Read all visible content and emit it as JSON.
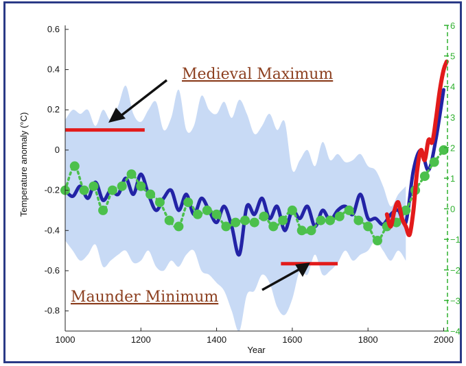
{
  "chart_data": {
    "type": "line",
    "xlabel": "Year",
    "ylabel": "Temperature anomaly (°C)",
    "xlim": [
      1000,
      2010
    ],
    "ylim": [
      -0.9,
      0.62
    ],
    "y2lim": [
      -4,
      6
    ],
    "x_ticks": [
      1000,
      1200,
      1400,
      1600,
      1800,
      2000
    ],
    "y_ticks": [
      -0.8,
      -0.6,
      -0.4,
      -0.2,
      0,
      0.2,
      0.4,
      0.6
    ],
    "y2_ticks": [
      -4,
      -3,
      -2,
      -1,
      0,
      1,
      2,
      3,
      4,
      5,
      6
    ],
    "grid": false,
    "colors": {
      "band": "#c8daf5",
      "reconstruction": "#2323a6",
      "instrumental": "#e21b1b",
      "dotted": "#4cc04c",
      "annotation_text": "#8c3f1f",
      "annotation_bar": "#e21b1b",
      "right_axis": "#2fb02f",
      "frame": "#2a3a86"
    },
    "band": {
      "x": [
        1000,
        1020,
        1040,
        1060,
        1080,
        1100,
        1120,
        1140,
        1160,
        1180,
        1200,
        1220,
        1240,
        1260,
        1280,
        1300,
        1320,
        1340,
        1360,
        1380,
        1400,
        1420,
        1440,
        1460,
        1480,
        1500,
        1520,
        1540,
        1560,
        1580,
        1600,
        1620,
        1640,
        1660,
        1680,
        1700,
        1720,
        1740,
        1760,
        1780,
        1800,
        1820,
        1840,
        1860,
        1880,
        1900
      ],
      "upper": [
        0.15,
        0.2,
        0.18,
        0.2,
        0.12,
        0.2,
        0.15,
        0.22,
        0.32,
        0.18,
        0.14,
        0.2,
        0.24,
        0.1,
        0.16,
        0.3,
        0.1,
        0.12,
        0.27,
        0.2,
        0.18,
        0.24,
        0.16,
        0.25,
        0.18,
        0.08,
        0.12,
        0.18,
        0.1,
        0.14,
        -0.1,
        -0.05,
        0.0,
        -0.08,
        0.04,
        -0.05,
        -0.02,
        -0.06,
        -0.05,
        -0.02,
        -0.08,
        -0.1,
        -0.18,
        -0.28,
        -0.22,
        -0.18
      ],
      "lower": [
        -0.45,
        -0.5,
        -0.55,
        -0.52,
        -0.47,
        -0.58,
        -0.55,
        -0.52,
        -0.5,
        -0.56,
        -0.55,
        -0.5,
        -0.58,
        -0.6,
        -0.55,
        -0.58,
        -0.52,
        -0.5,
        -0.6,
        -0.62,
        -0.66,
        -0.7,
        -0.8,
        -0.9,
        -0.72,
        -0.7,
        -0.62,
        -0.66,
        -0.78,
        -0.82,
        -0.74,
        -0.6,
        -0.62,
        -0.52,
        -0.62,
        -0.6,
        -0.56,
        -0.5,
        -0.55,
        -0.52,
        -0.5,
        -0.45,
        -0.5,
        -0.55,
        -0.5,
        -0.55
      ]
    },
    "series": [
      {
        "x": [
          1000,
          1020,
          1040,
          1060,
          1080,
          1100,
          1120,
          1140,
          1160,
          1180,
          1200,
          1220,
          1240,
          1260,
          1280,
          1300,
          1320,
          1340,
          1360,
          1380,
          1400,
          1420,
          1440,
          1460,
          1480,
          1500,
          1520,
          1540,
          1560,
          1580,
          1600,
          1620,
          1640,
          1660,
          1680,
          1700,
          1720,
          1740,
          1760,
          1780,
          1800,
          1820,
          1840,
          1860,
          1880,
          1900,
          1920,
          1940,
          1960,
          1980,
          2000
        ],
        "values": [
          -0.2,
          -0.23,
          -0.18,
          -0.24,
          -0.16,
          -0.25,
          -0.2,
          -0.22,
          -0.14,
          -0.22,
          -0.12,
          -0.22,
          -0.3,
          -0.24,
          -0.2,
          -0.3,
          -0.22,
          -0.32,
          -0.24,
          -0.3,
          -0.36,
          -0.28,
          -0.38,
          -0.52,
          -0.28,
          -0.32,
          -0.24,
          -0.34,
          -0.28,
          -0.4,
          -0.3,
          -0.34,
          -0.28,
          -0.38,
          -0.3,
          -0.35,
          -0.3,
          -0.28,
          -0.32,
          -0.22,
          -0.34,
          -0.34,
          -0.37,
          -0.32,
          -0.3,
          -0.36,
          -0.1,
          0.0,
          -0.1,
          0.06,
          0.3
        ]
      },
      {
        "x": [
          1850,
          1860,
          1870,
          1880,
          1890,
          1900,
          1910,
          1920,
          1930,
          1940,
          1950,
          1960,
          1970,
          1980,
          1990,
          2000,
          2008
        ],
        "values": [
          -0.32,
          -0.38,
          -0.3,
          -0.26,
          -0.34,
          -0.38,
          -0.42,
          -0.3,
          -0.1,
          0.0,
          -0.05,
          0.05,
          0.04,
          0.16,
          0.3,
          0.4,
          0.44
        ]
      },
      {
        "x": [
          1000,
          1025,
          1050,
          1075,
          1100,
          1125,
          1150,
          1175,
          1200,
          1225,
          1250,
          1275,
          1300,
          1325,
          1350,
          1375,
          1400,
          1425,
          1450,
          1475,
          1500,
          1525,
          1550,
          1575,
          1600,
          1625,
          1650,
          1675,
          1700,
          1725,
          1750,
          1775,
          1800,
          1825,
          1850,
          1875,
          1900,
          1925,
          1950,
          1975,
          2000
        ],
        "values": [
          -0.2,
          -0.08,
          -0.2,
          -0.18,
          -0.3,
          -0.2,
          -0.18,
          -0.12,
          -0.18,
          -0.22,
          -0.26,
          -0.35,
          -0.38,
          -0.26,
          -0.32,
          -0.3,
          -0.32,
          -0.38,
          -0.36,
          -0.35,
          -0.36,
          -0.33,
          -0.38,
          -0.35,
          -0.3,
          -0.4,
          -0.4,
          -0.35,
          -0.35,
          -0.33,
          -0.3,
          -0.35,
          -0.38,
          -0.45,
          -0.38,
          -0.36,
          -0.3,
          -0.2,
          -0.13,
          -0.06,
          0.0
        ]
      }
    ],
    "annotations": [
      {
        "text": "Medieval Maximum",
        "x_range": [
          1000,
          1210
        ],
        "y": 0.1
      },
      {
        "text": "Maunder Minimum",
        "x_range": [
          1570,
          1720
        ],
        "y": -0.565
      }
    ]
  }
}
